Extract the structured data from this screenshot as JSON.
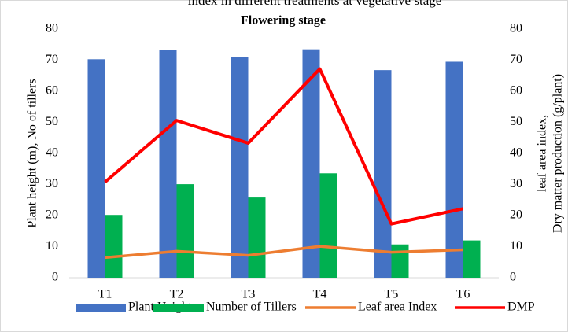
{
  "chart_data": {
    "type": "bar_line",
    "subtitle": "index in different treatments at vegetative stage",
    "title": "Flowering stage",
    "y_label": "Plant height (m), No of tillers",
    "y2_label": [
      "leaf area index,",
      "Dry matter production (g/plant)"
    ],
    "categories": [
      "T1",
      "T2",
      "T3",
      "T4",
      "T5",
      "T6"
    ],
    "series": [
      {
        "name": "Plant Height",
        "type": "bar",
        "color": "#4472c4",
        "values": [
          70.3,
          73.2,
          71.1,
          73.5,
          66.8,
          69.5
        ]
      },
      {
        "name": "Number of Tillers",
        "type": "bar",
        "color": "#00b050",
        "values": [
          20.2,
          30.1,
          25.8,
          33.6,
          10.7,
          12.0
        ]
      },
      {
        "name": "Leaf area Index",
        "type": "line",
        "axis": "y2",
        "color": "#ed7d31",
        "values": [
          6.5,
          8.5,
          7.2,
          10.1,
          8.2,
          9.0
        ]
      },
      {
        "name": "DMP",
        "type": "line",
        "axis": "y2",
        "color": "#ff0000",
        "values": [
          30.8,
          50.6,
          43.3,
          67.2,
          17.3,
          22.2
        ]
      }
    ],
    "ylim": [
      0,
      80
    ],
    "yticks": [
      0,
      10,
      20,
      30,
      40,
      50,
      60,
      70,
      80
    ],
    "y2lim": [
      0,
      80
    ],
    "y2ticks": [
      0,
      10,
      20,
      30,
      40,
      50,
      60,
      70,
      80
    ],
    "grid": false,
    "legend": "bottom"
  }
}
